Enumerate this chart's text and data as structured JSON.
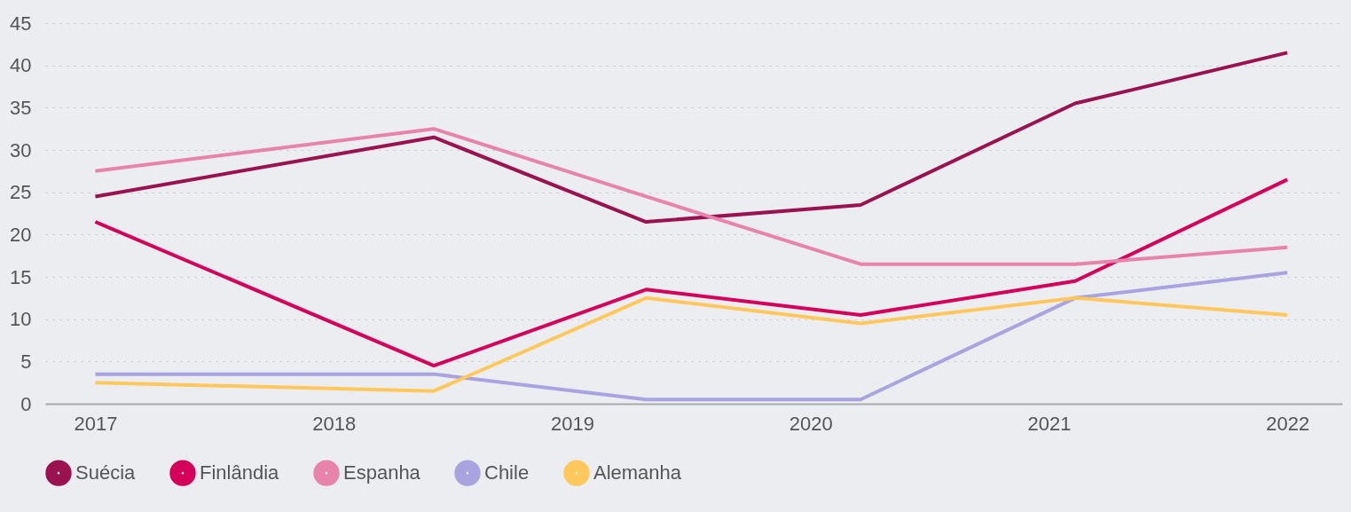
{
  "chart_data": {
    "type": "line",
    "x": [
      2017,
      2018.42,
      2019.31,
      2020.21,
      2021.11,
      2022
    ],
    "series": [
      {
        "name": "Suécia",
        "color": "#9b1250",
        "values": [
          24.5,
          31.5,
          21.5,
          23.5,
          35.5,
          41.5
        ]
      },
      {
        "name": "Finlândia",
        "color": "#d4005a",
        "values": [
          21.5,
          4.5,
          13.5,
          10.5,
          14.5,
          26.5
        ]
      },
      {
        "name": "Espanha",
        "color": "#e884ac",
        "values": [
          27.5,
          32.5,
          24.5,
          16.5,
          16.5,
          18.5
        ]
      },
      {
        "name": "Chile",
        "color": "#a9a3e0",
        "values": [
          3.5,
          3.5,
          0.5,
          0.5,
          12.5,
          15.5
        ]
      },
      {
        "name": "Alemanha",
        "color": "#ffc85c",
        "values": [
          2.5,
          1.5,
          12.5,
          9.5,
          12.5,
          10.5
        ]
      }
    ],
    "xlim": [
      2016.79,
      2022.23
    ],
    "xticks": [
      2017,
      2018,
      2019,
      2020,
      2021,
      2022
    ],
    "ylim": [
      0,
      45
    ],
    "yticks": [
      0,
      5,
      10,
      15,
      20,
      25,
      30,
      35,
      40,
      45
    ],
    "grid": "y",
    "legend": "bottom left",
    "marker": "none",
    "line_style": "solid"
  }
}
